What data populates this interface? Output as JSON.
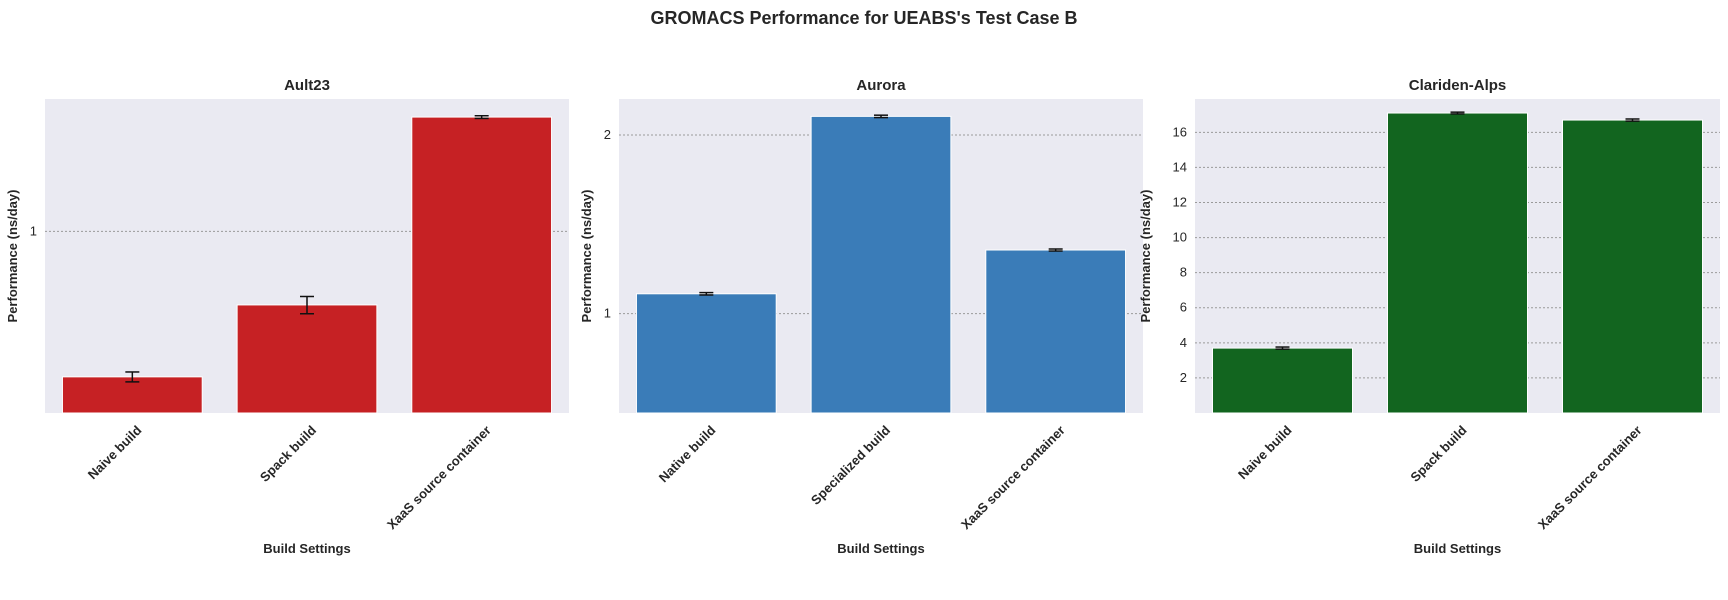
{
  "title": "GROMACS Performance for UEABS's Test Case B",
  "chart_data": [
    {
      "type": "bar",
      "title": "Ault23",
      "xlabel": "Build Settings",
      "ylabel": "Performance (ns/day)",
      "yscale": "log",
      "ylim": [
        0.4,
        1.95
      ],
      "yticks": [
        1
      ],
      "ytick_labels": [
        "1"
      ],
      "categories": [
        "Naive build",
        "Spack build",
        "XaaS source container"
      ],
      "values": [
        0.48,
        0.69,
        1.78
      ],
      "errors": [
        0.012,
        0.03,
        0.012
      ],
      "color": "#c62124",
      "grid": true
    },
    {
      "type": "bar",
      "title": "Aurora",
      "xlabel": "Build Settings",
      "ylabel": "Performance (ns/day)",
      "yscale": "log",
      "ylim": [
        0.68,
        2.3
      ],
      "yticks": [
        1,
        2
      ],
      "ytick_labels": [
        "1",
        "2"
      ],
      "categories": [
        "Native build",
        "Specialized build",
        "XaaS source container"
      ],
      "values": [
        1.08,
        2.15,
        1.28
      ],
      "errors": [
        0.005,
        0.01,
        0.005
      ],
      "color": "#3a7cb8",
      "grid": true
    },
    {
      "type": "bar",
      "title": "Clariden-Alps",
      "xlabel": "Build Settings",
      "ylabel": "Performance (ns/day)",
      "yscale": "linear",
      "ylim": [
        0,
        17.9
      ],
      "yticks": [
        2,
        4,
        6,
        8,
        10,
        12,
        14,
        16
      ],
      "ytick_labels": [
        "2",
        "4",
        "6",
        "8",
        "10",
        "12",
        "14",
        "16"
      ],
      "categories": [
        "Naive build",
        "Spack build",
        "XaaS source container"
      ],
      "values": [
        3.7,
        17.1,
        16.7
      ],
      "errors": [
        0.06,
        0.05,
        0.06
      ],
      "color": "#12651f",
      "grid": true
    }
  ]
}
